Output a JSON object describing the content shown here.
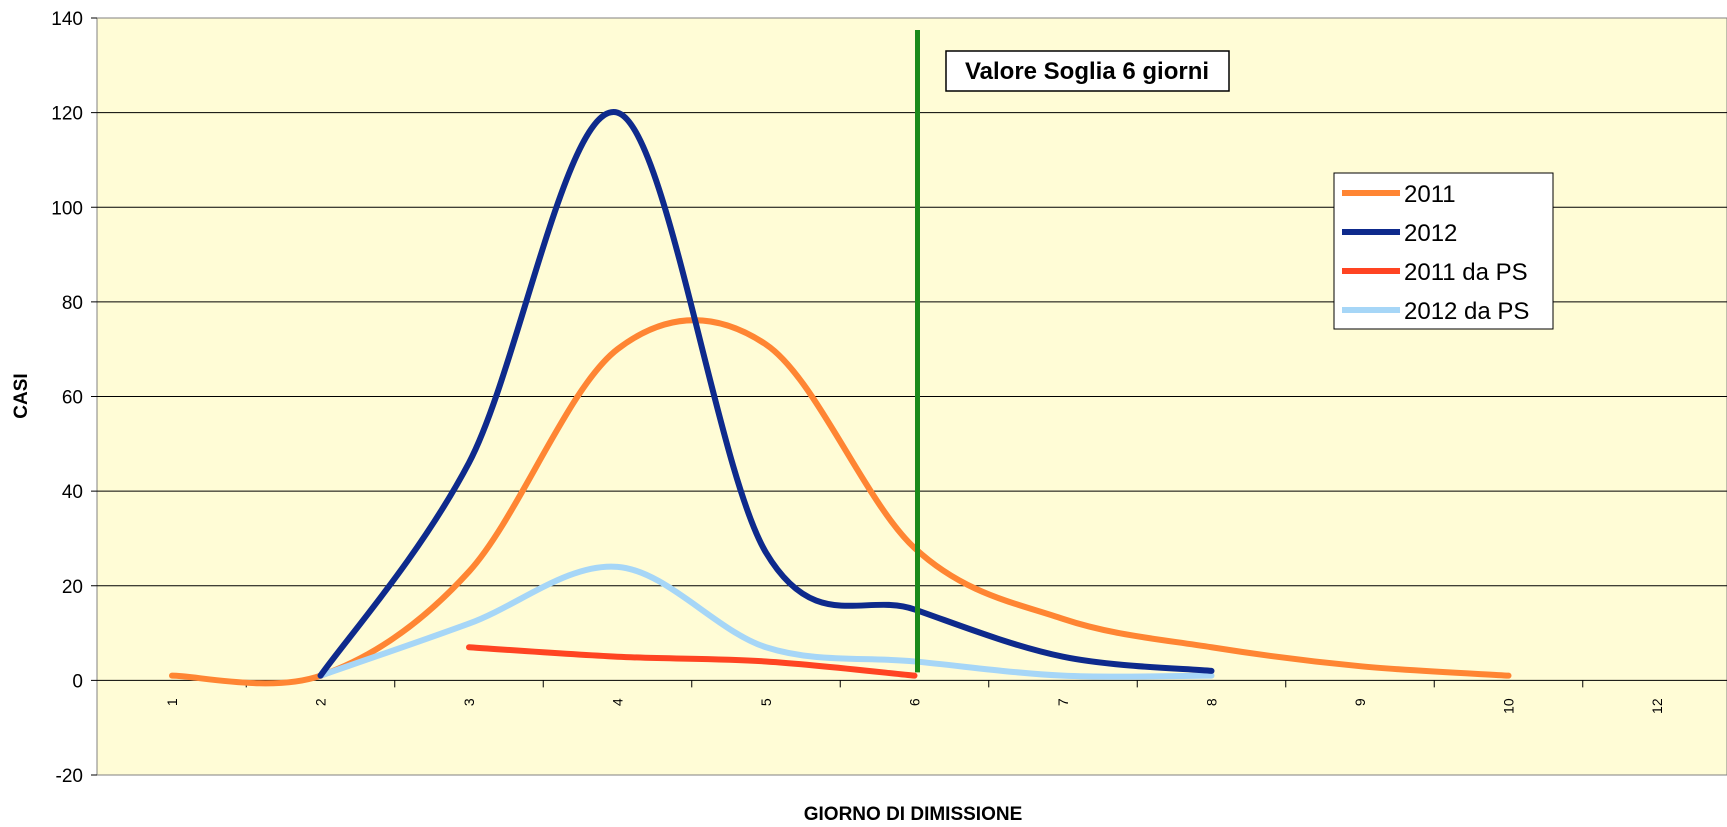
{
  "chart_data": {
    "type": "line",
    "xlabel": "GIORNO DI DIMISSIONE",
    "ylabel": "CASI",
    "ylim": [
      -20,
      140
    ],
    "yticks": [
      -20,
      0,
      20,
      40,
      60,
      80,
      100,
      120,
      140
    ],
    "categories": [
      "1",
      "2",
      "3",
      "4",
      "5",
      "6",
      "7",
      "8",
      "9",
      "10",
      "12"
    ],
    "grid": true,
    "legend_position": "top-right",
    "series": [
      {
        "name": "2011",
        "color": "#FF8533",
        "values": [
          1,
          1,
          23,
          70,
          71,
          28,
          13,
          7,
          3,
          1,
          null
        ]
      },
      {
        "name": "2012",
        "color": "#0E2A8C",
        "values": [
          null,
          1,
          46,
          120,
          27,
          15,
          5,
          2,
          null,
          null,
          null
        ]
      },
      {
        "name": "2011 da PS",
        "color": "#FF4422",
        "values": [
          null,
          null,
          7,
          5,
          4,
          1,
          null,
          null,
          null,
          null,
          null
        ]
      },
      {
        "name": "2012 da PS",
        "color": "#A6D6F7",
        "values": [
          null,
          1,
          12,
          24,
          7,
          4,
          1,
          1,
          null,
          null,
          null
        ]
      }
    ],
    "threshold": {
      "category": "6",
      "color": "#1A8A1A",
      "label": "Valore Soglia 6 giorni"
    }
  }
}
